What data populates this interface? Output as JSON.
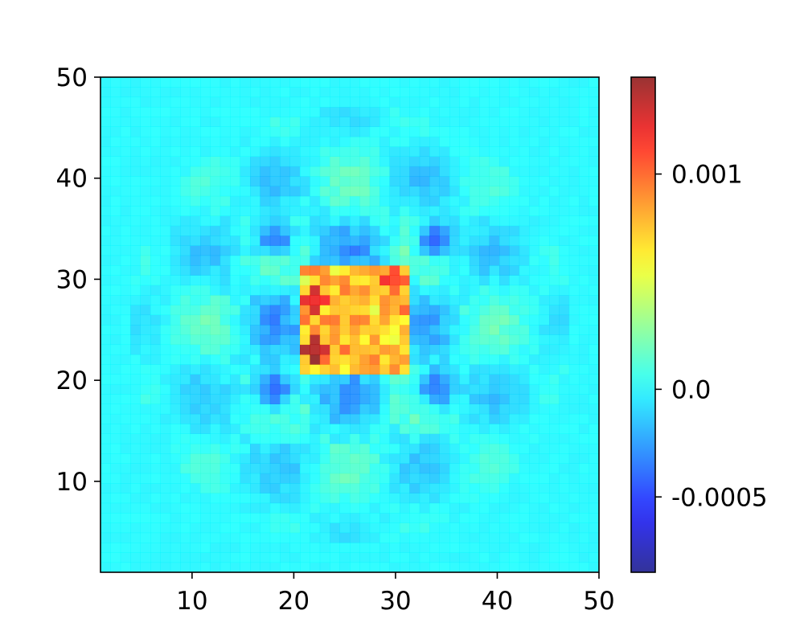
{
  "chart_data": {
    "type": "heatmap",
    "title": "",
    "xlabel": "",
    "ylabel": "",
    "grid": false,
    "colormap": "jet",
    "x_range": [
      1,
      50
    ],
    "y_range": [
      1,
      50
    ],
    "grid_size": [
      50,
      50
    ],
    "xticks": [
      10,
      20,
      30,
      40,
      50
    ],
    "yticks": [
      10,
      20,
      30,
      40,
      50
    ],
    "xtick_labels": [
      "10",
      "20",
      "30",
      "40",
      "50"
    ],
    "ytick_labels": [
      "10",
      "20",
      "30",
      "40",
      "50"
    ],
    "colorbar": {
      "range": [
        -0.00085,
        0.00145
      ],
      "ticks": [
        -0.0005,
        0.0,
        0.001
      ],
      "tick_labels": [
        "-0.0005",
        "0.0",
        "0.001"
      ],
      "position": "right"
    },
    "value_range": [
      -0.00085,
      0.00145
    ],
    "features": {
      "center_block": {
        "x": [
          21,
          31
        ],
        "y": [
          21,
          31
        ],
        "value_approx": 0.0009
      },
      "negative_clusters": [
        {
          "x": 18,
          "y": 34,
          "value_approx": -0.0006
        },
        {
          "x": 34,
          "y": 34,
          "value_approx": -0.0006
        },
        {
          "x": 18,
          "y": 19,
          "value_approx": -0.0007
        },
        {
          "x": 34,
          "y": 19,
          "value_approx": -0.0006
        }
      ],
      "hotspots": [
        {
          "x": 22,
          "y": 23,
          "value_approx": 0.00135
        },
        {
          "x": 22,
          "y": 28,
          "value_approx": 0.0012
        },
        {
          "x": 30,
          "y": 30,
          "value_approx": 0.0011
        }
      ],
      "background_value": 0.0
    }
  }
}
